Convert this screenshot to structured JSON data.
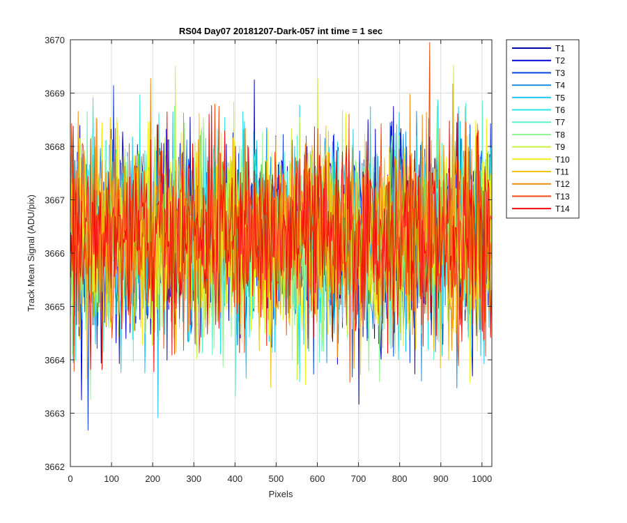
{
  "chart_data": {
    "type": "line",
    "title": "RS04 Day07 20181207-Dark-057 int time = 1 sec",
    "xlabel": "Pixels",
    "ylabel": "Track Mean Signal (ADU/pix)",
    "xlim": [
      0,
      1024
    ],
    "ylim": [
      3662,
      3670
    ],
    "xticks": [
      0,
      100,
      200,
      300,
      400,
      500,
      600,
      700,
      800,
      900,
      1000
    ],
    "yticks": [
      3662,
      3663,
      3664,
      3665,
      3666,
      3667,
      3668,
      3669,
      3670
    ],
    "grid": true,
    "legend_position": "outside-top-right",
    "series_mean": 3666.3,
    "series_noise_sd": 0.9,
    "series": [
      {
        "name": "T1",
        "color": "#0000AA"
      },
      {
        "name": "T2",
        "color": "#0000D8"
      },
      {
        "name": "T3",
        "color": "#0A3FE6"
      },
      {
        "name": "T4",
        "color": "#1A8FE8"
      },
      {
        "name": "T5",
        "color": "#1CC6F0"
      },
      {
        "name": "T6",
        "color": "#22E8E8"
      },
      {
        "name": "T7",
        "color": "#5EF2C8"
      },
      {
        "name": "T8",
        "color": "#8CF58C"
      },
      {
        "name": "T9",
        "color": "#C6F23C"
      },
      {
        "name": "T10",
        "color": "#F2EE10"
      },
      {
        "name": "T11",
        "color": "#F2C010"
      },
      {
        "name": "T12",
        "color": "#F28A10"
      },
      {
        "name": "T13",
        "color": "#F24A10"
      },
      {
        "name": "T14",
        "color": "#F20A0A"
      }
    ]
  }
}
